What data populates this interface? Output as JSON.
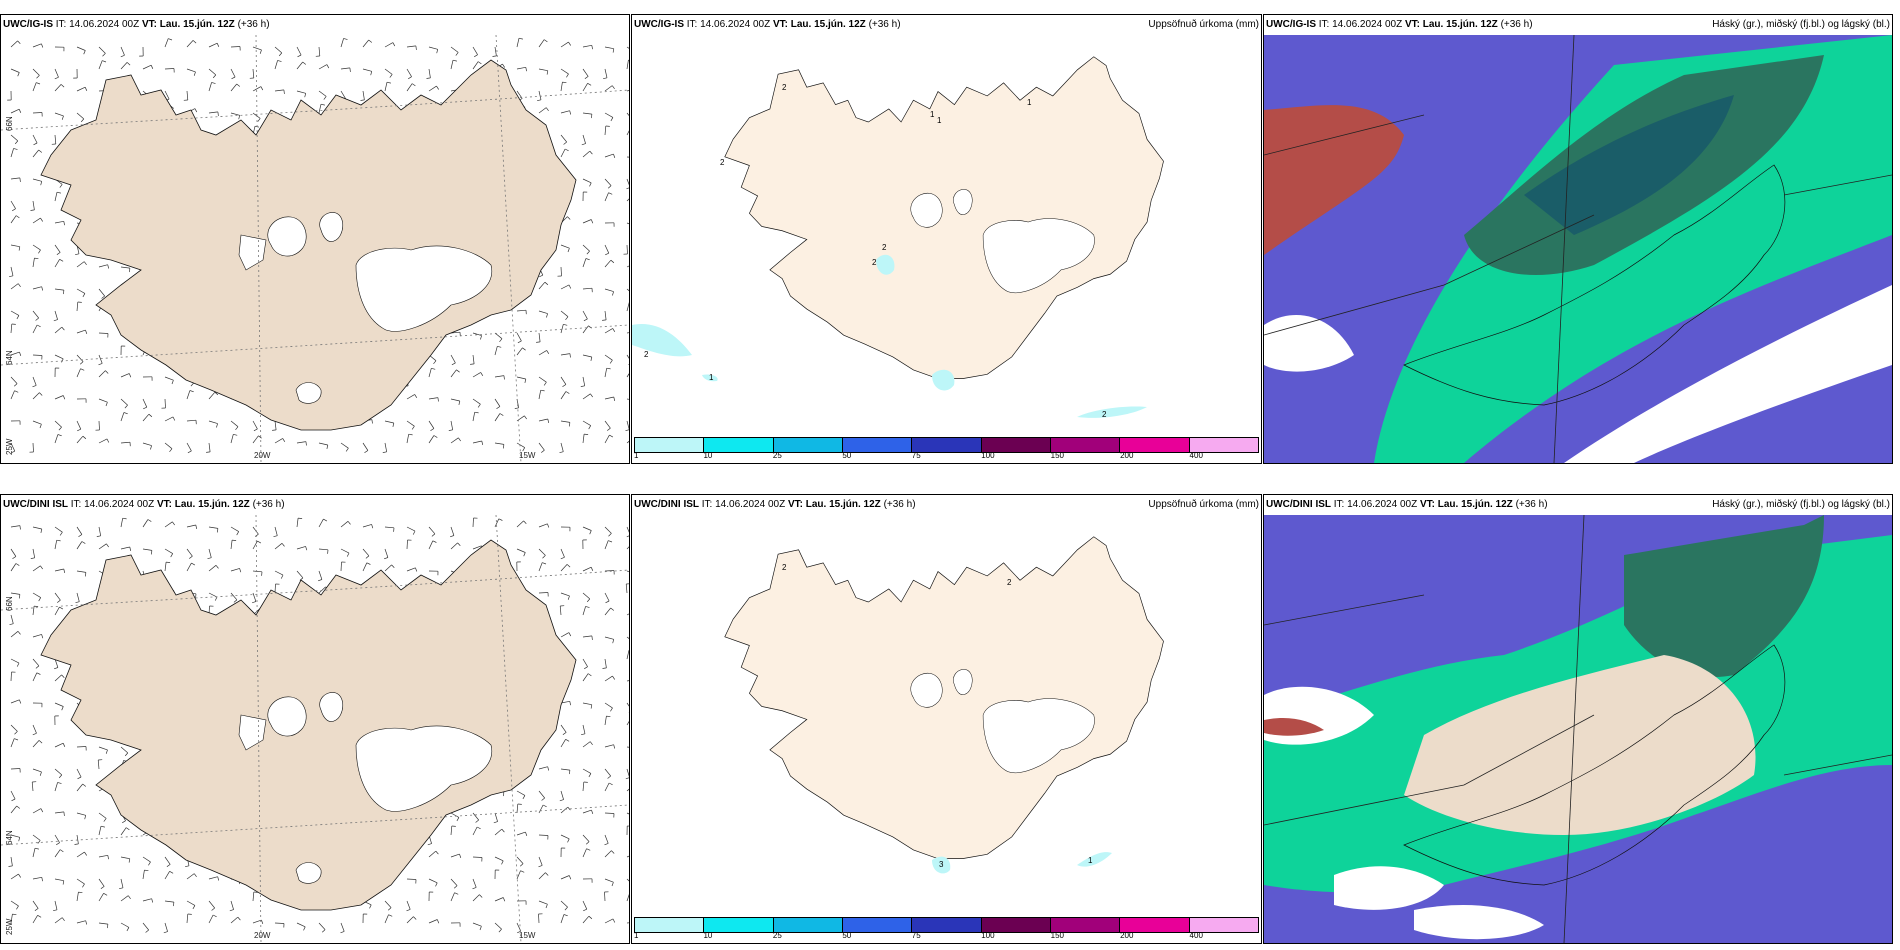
{
  "colors": {
    "wind_land": "#ecdcca",
    "precip_land": "#fcf0e2",
    "cloud_low": "#5e59cf",
    "cloud_mid": "#0ed39a",
    "cloud_high": "#2a7560",
    "cloud_high_dense": "#1a5d68",
    "rain_light": "#bdf6f8"
  },
  "rows": [
    {
      "model": "UWC/IG-IS",
      "it_label": "IT:",
      "it_value": "14.06.2024 00Z",
      "vt_label": "VT:",
      "vt_value": "Lau. 15.jún. 12Z",
      "lead": "(+36 h)"
    },
    {
      "model": "UWC/DINI ISL",
      "it_label": "IT:",
      "it_value": "14.06.2024 00Z",
      "vt_label": "VT:",
      "vt_value": "Lau. 15.jún. 12Z",
      "lead": "(+36 h)"
    }
  ],
  "panels": {
    "wind": {
      "lat_labels": [
        "66N",
        "64N",
        "25W"
      ],
      "lon_labels": [
        "20W",
        "15W"
      ]
    },
    "precip": {
      "title": "Uppsöfnuð úrkoma (mm)",
      "legend": {
        "colors": [
          "#bdf6f8",
          "#0ee8f0",
          "#10b8e4",
          "#2e62e8",
          "#2a35b8",
          "#6b0052",
          "#a1007a",
          "#e80098",
          "#f6aaf0"
        ],
        "ticks": [
          "1",
          "10",
          "25",
          "50",
          "75",
          "100",
          "150",
          "200",
          "400"
        ]
      },
      "annotations_top": [
        "2",
        "1",
        "1",
        "1",
        "2",
        "2",
        "2",
        "2",
        "1",
        "2"
      ],
      "annotations_bottom": [
        "2",
        "2",
        "1",
        "3"
      ]
    },
    "cloud": {
      "title": "Háský (gr.), miðský (fj.bl.) og lágský (bl.)"
    }
  }
}
